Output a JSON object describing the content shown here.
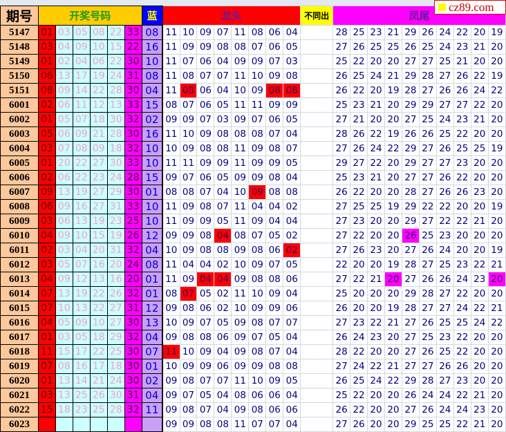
{
  "header": {
    "period": "期号",
    "draw": "开奖号码",
    "blue": "蓝",
    "dragon": "龙头",
    "diff": "不同出",
    "tail": "凤尾"
  },
  "watermark": "cz89.com",
  "colors": {
    "period_bg": "#fcc89c",
    "red": "#ff0000",
    "light": "#ccffff",
    "magenta": "#ff00ff",
    "blue_bg": "#c8a0f8",
    "text": "#000080"
  },
  "rows": [
    {
      "p": "5147",
      "r": "01",
      "b": [
        "03",
        "05",
        "08",
        "22"
      ],
      "m": "33",
      "blue": "08",
      "d": [
        "11",
        "10",
        "09",
        "07",
        "11",
        "08",
        "06",
        "04"
      ],
      "dh": [],
      "t": [
        "28",
        "25",
        "23",
        "21",
        "29",
        "26",
        "24",
        "22",
        "20",
        "19"
      ],
      "th": []
    },
    {
      "p": "5148",
      "r": "03",
      "b": [
        "04",
        "09",
        "10",
        "15"
      ],
      "m": "22",
      "blue": "16",
      "d": [
        "11",
        "09",
        "09",
        "08",
        "08",
        "07",
        "06",
        "05"
      ],
      "dh": [],
      "t": [
        "27",
        "26",
        "25",
        "25",
        "26",
        "25",
        "24",
        "23",
        "21",
        "20"
      ],
      "th": []
    },
    {
      "p": "5149",
      "r": "01",
      "b": [
        "02",
        "04",
        "06",
        "22"
      ],
      "m": "30",
      "blue": "10",
      "d": [
        "11",
        "07",
        "06",
        "04",
        "09",
        "09",
        "07",
        "03"
      ],
      "dh": [],
      "t": [
        "25",
        "22",
        "20",
        "20",
        "27",
        "27",
        "25",
        "21",
        "20",
        "20"
      ],
      "th": []
    },
    {
      "p": "5150",
      "r": "06",
      "b": [
        "13",
        "17",
        "19",
        "24"
      ],
      "m": "31",
      "blue": "08",
      "d": [
        "11",
        "08",
        "07",
        "07",
        "11",
        "10",
        "09",
        "08"
      ],
      "dh": [],
      "t": [
        "26",
        "25",
        "24",
        "21",
        "29",
        "28",
        "27",
        "26",
        "22",
        "19"
      ],
      "th": []
    },
    {
      "p": "5151",
      "r": "08",
      "b": [
        "09",
        "14",
        "22",
        "28"
      ],
      "m": "30",
      "blue": "04",
      "d": [
        "11",
        "08",
        "06",
        "04",
        "10",
        "09",
        "08",
        "08"
      ],
      "dh": [
        1,
        6,
        7
      ],
      "t": [
        "26",
        "22",
        "20",
        "19",
        "28",
        "27",
        "26",
        "26",
        "24",
        "22"
      ],
      "th": []
    },
    {
      "p": "6001",
      "r": "02",
      "b": [
        "06",
        "11",
        "12",
        "13"
      ],
      "m": "33",
      "blue": "15",
      "d": [
        "08",
        "07",
        "06",
        "05",
        "11",
        "11",
        "09",
        "09"
      ],
      "dh": [],
      "t": [
        "25",
        "23",
        "21",
        "20",
        "29",
        "29",
        "27",
        "27",
        "22",
        "20"
      ],
      "th": []
    },
    {
      "p": "6002",
      "r": "01",
      "b": [
        "05",
        "07",
        "18",
        "30"
      ],
      "m": "32",
      "blue": "02",
      "d": [
        "09",
        "09",
        "07",
        "03",
        "09",
        "07",
        "06",
        "05"
      ],
      "dh": [],
      "t": [
        "27",
        "21",
        "20",
        "20",
        "27",
        "25",
        "24",
        "23",
        "21",
        "20"
      ],
      "th": []
    },
    {
      "p": "6003",
      "r": "05",
      "b": [
        "06",
        "09",
        "21",
        "28"
      ],
      "m": "30",
      "blue": "16",
      "d": [
        "11",
        "10",
        "09",
        "08",
        "08",
        "08",
        "07",
        "04"
      ],
      "dh": [],
      "t": [
        "28",
        "26",
        "22",
        "19",
        "26",
        "26",
        "25",
        "22",
        "20",
        "20"
      ],
      "th": []
    },
    {
      "p": "6004",
      "r": "03",
      "b": [
        "07",
        "08",
        "09",
        "18"
      ],
      "m": "32",
      "blue": "10",
      "d": [
        "10",
        "09",
        "08",
        "08",
        "11",
        "09",
        "08",
        "07"
      ],
      "dh": [],
      "t": [
        "27",
        "26",
        "24",
        "22",
        "29",
        "27",
        "26",
        "25",
        "25",
        "19"
      ],
      "th": []
    },
    {
      "p": "6005",
      "r": "01",
      "b": [
        "20",
        "22",
        "27",
        "30"
      ],
      "m": "33",
      "blue": "10",
      "d": [
        "11",
        "11",
        "09",
        "09",
        "11",
        "09",
        "09",
        "05"
      ],
      "dh": [],
      "t": [
        "29",
        "27",
        "22",
        "20",
        "29",
        "27",
        "27",
        "23",
        "20",
        "20"
      ],
      "th": []
    },
    {
      "p": "6006",
      "r": "02",
      "b": [
        "06",
        "22",
        "23",
        "24"
      ],
      "m": "28",
      "blue": "15",
      "d": [
        "09",
        "07",
        "06",
        "05",
        "09",
        "09",
        "08",
        "04"
      ],
      "dh": [],
      "t": [
        "25",
        "23",
        "21",
        "20",
        "27",
        "27",
        "26",
        "22",
        "20",
        "20"
      ],
      "th": []
    },
    {
      "p": "6007",
      "r": "09",
      "b": [
        "13",
        "19",
        "27",
        "29"
      ],
      "m": "30",
      "blue": "01",
      "d": [
        "08",
        "08",
        "07",
        "04",
        "10",
        "09",
        "08",
        "08"
      ],
      "dh": [
        5
      ],
      "t": [
        "26",
        "22",
        "20",
        "20",
        "28",
        "27",
        "26",
        "26",
        "23",
        "20"
      ],
      "th": []
    },
    {
      "p": "6008",
      "r": "06",
      "b": [
        "09",
        "16",
        "27",
        "31"
      ],
      "m": "33",
      "blue": "10",
      "d": [
        "11",
        "09",
        "08",
        "07",
        "11",
        "04",
        "04",
        "02"
      ],
      "dh": [],
      "t": [
        "27",
        "25",
        "25",
        "19",
        "29",
        "22",
        "22",
        "20",
        "20",
        "19"
      ],
      "th": []
    },
    {
      "p": "6009",
      "r": "03",
      "b": [
        "06",
        "13",
        "19",
        "23"
      ],
      "m": "25",
      "blue": "10",
      "d": [
        "11",
        "09",
        "09",
        "05",
        "11",
        "09",
        "04",
        "04"
      ],
      "dh": [],
      "t": [
        "27",
        "23",
        "20",
        "20",
        "29",
        "27",
        "22",
        "22",
        "21",
        "20"
      ],
      "th": []
    },
    {
      "p": "6010",
      "r": "04",
      "b": [
        "09",
        "10",
        "15",
        "19"
      ],
      "m": "26",
      "blue": "12",
      "d": [
        "09",
        "09",
        "08",
        "04",
        "08",
        "07",
        "05",
        "02"
      ],
      "dh": [
        3
      ],
      "t": [
        "27",
        "22",
        "20",
        "20",
        "26",
        "25",
        "23",
        "20",
        "20",
        "20"
      ],
      "th": [
        4
      ]
    },
    {
      "p": "6011",
      "r": "02",
      "b": [
        "03",
        "04",
        "20",
        "31"
      ],
      "m": "32",
      "blue": "04",
      "d": [
        "10",
        "09",
        "08",
        "08",
        "09",
        "08",
        "06",
        "02"
      ],
      "dh": [
        7
      ],
      "t": [
        "27",
        "26",
        "23",
        "20",
        "27",
        "26",
        "24",
        "20",
        "20",
        "19"
      ],
      "th": []
    },
    {
      "p": "6012",
      "r": "03",
      "b": [
        "05",
        "07",
        "16",
        "20"
      ],
      "m": "24",
      "blue": "08",
      "d": [
        "11",
        "04",
        "04",
        "02",
        "10",
        "09",
        "07",
        "05"
      ],
      "dh": [],
      "t": [
        "22",
        "20",
        "20",
        "19",
        "28",
        "27",
        "25",
        "23",
        "22",
        "21"
      ],
      "th": []
    },
    {
      "p": "6013",
      "r": "04",
      "b": [
        "09",
        "12",
        "13",
        "16"
      ],
      "m": "20",
      "blue": "01",
      "d": [
        "11",
        "09",
        "04",
        "04",
        "09",
        "08",
        "08",
        "06"
      ],
      "dh": [
        2,
        3
      ],
      "t": [
        "27",
        "22",
        "21",
        "20",
        "27",
        "26",
        "26",
        "24",
        "23",
        "20"
      ],
      "th": [
        3,
        9
      ]
    },
    {
      "p": "6014",
      "r": "07",
      "b": [
        "13",
        "19",
        "22",
        "26"
      ],
      "m": "32",
      "blue": "01",
      "d": [
        "08",
        "07",
        "05",
        "02",
        "11",
        "10",
        "09",
        "04"
      ],
      "dh": [
        1
      ],
      "t": [
        "25",
        "20",
        "20",
        "20",
        "29",
        "28",
        "27",
        "22",
        "20",
        "20"
      ],
      "th": []
    },
    {
      "p": "6015",
      "r": "07",
      "b": [
        "10",
        "13",
        "22",
        "27"
      ],
      "m": "31",
      "blue": "12",
      "d": [
        "09",
        "08",
        "06",
        "02",
        "10",
        "09",
        "09",
        "06"
      ],
      "dh": [],
      "t": [
        "26",
        "20",
        "20",
        "19",
        "28",
        "27",
        "27",
        "24",
        "22",
        "21"
      ],
      "th": []
    },
    {
      "p": "6016",
      "r": "04",
      "b": [
        "05",
        "09",
        "10",
        "27"
      ],
      "m": "30",
      "blue": "13",
      "d": [
        "10",
        "09",
        "07",
        "05",
        "09",
        "08",
        "07",
        "07"
      ],
      "dh": [],
      "t": [
        "27",
        "23",
        "22",
        "21",
        "27",
        "26",
        "25",
        "25",
        "24",
        "22"
      ],
      "th": []
    },
    {
      "p": "6017",
      "r": "01",
      "b": [
        "03",
        "05",
        "18",
        "29"
      ],
      "m": "32",
      "blue": "04",
      "d": [
        "09",
        "08",
        "08",
        "06",
        "09",
        "07",
        "05",
        "04"
      ],
      "dh": [],
      "t": [
        "26",
        "24",
        "23",
        "20",
        "27",
        "25",
        "23",
        "22",
        "20",
        "20"
      ],
      "th": []
    },
    {
      "p": "6018",
      "r": "11",
      "b": [
        "15",
        "17",
        "22",
        "25"
      ],
      "m": "30",
      "blue": "07",
      "d": [
        "11",
        "10",
        "09",
        "04",
        "09",
        "08",
        "07",
        "04"
      ],
      "dh": [
        0
      ],
      "t": [
        "28",
        "22",
        "20",
        "20",
        "27",
        "26",
        "25",
        "22",
        "20",
        "20"
      ],
      "th": []
    },
    {
      "p": "6019",
      "r": "07",
      "b": [
        "08",
        "16",
        "17",
        "18"
      ],
      "m": "30",
      "blue": "01",
      "d": [
        "10",
        "09",
        "09",
        "06",
        "09",
        "09",
        "08",
        "08"
      ],
      "dh": [],
      "t": [
        "27",
        "24",
        "22",
        "21",
        "27",
        "27",
        "26",
        "26",
        "20",
        "20"
      ],
      "th": []
    },
    {
      "p": "6020",
      "r": "01",
      "b": [
        "13",
        "14",
        "21",
        "24"
      ],
      "m": "30",
      "blue": "02",
      "d": [
        "09",
        "08",
        "07",
        "07",
        "11",
        "10",
        "09",
        "05"
      ],
      "dh": [],
      "t": [
        "26",
        "25",
        "24",
        "22",
        "29",
        "28",
        "27",
        "23",
        "20",
        "20"
      ],
      "th": []
    },
    {
      "p": "6021",
      "r": "03",
      "b": [
        "13",
        "25",
        "26",
        "30"
      ],
      "m": "31",
      "blue": "04",
      "d": [
        "09",
        "07",
        "05",
        "04",
        "08",
        "06",
        "06",
        "04"
      ],
      "dh": [],
      "t": [
        "25",
        "22",
        "20",
        "20",
        "26",
        "24",
        "24",
        "22",
        "21",
        "20"
      ],
      "th": []
    },
    {
      "p": "6022",
      "r": "15",
      "b": [
        "18",
        "23",
        "25",
        "28"
      ],
      "m": "32",
      "blue": "11",
      "d": [
        "09",
        "08",
        "07",
        "04",
        "09",
        "08",
        "06",
        "06"
      ],
      "dh": [],
      "t": [
        "26",
        "22",
        "20",
        "20",
        "27",
        "26",
        "24",
        "24",
        "23",
        "20"
      ],
      "th": []
    },
    {
      "p": "6023",
      "r": "",
      "b": [
        "",
        "",
        "",
        ""
      ],
      "m": "",
      "blue": "",
      "d": [
        "09",
        "09",
        "08",
        "08",
        "11",
        "07",
        "07",
        "04"
      ],
      "dh": [],
      "t": [
        "27",
        "26",
        "20",
        "20",
        "29",
        "25",
        "25",
        "22",
        "21",
        "20"
      ],
      "th": []
    }
  ]
}
